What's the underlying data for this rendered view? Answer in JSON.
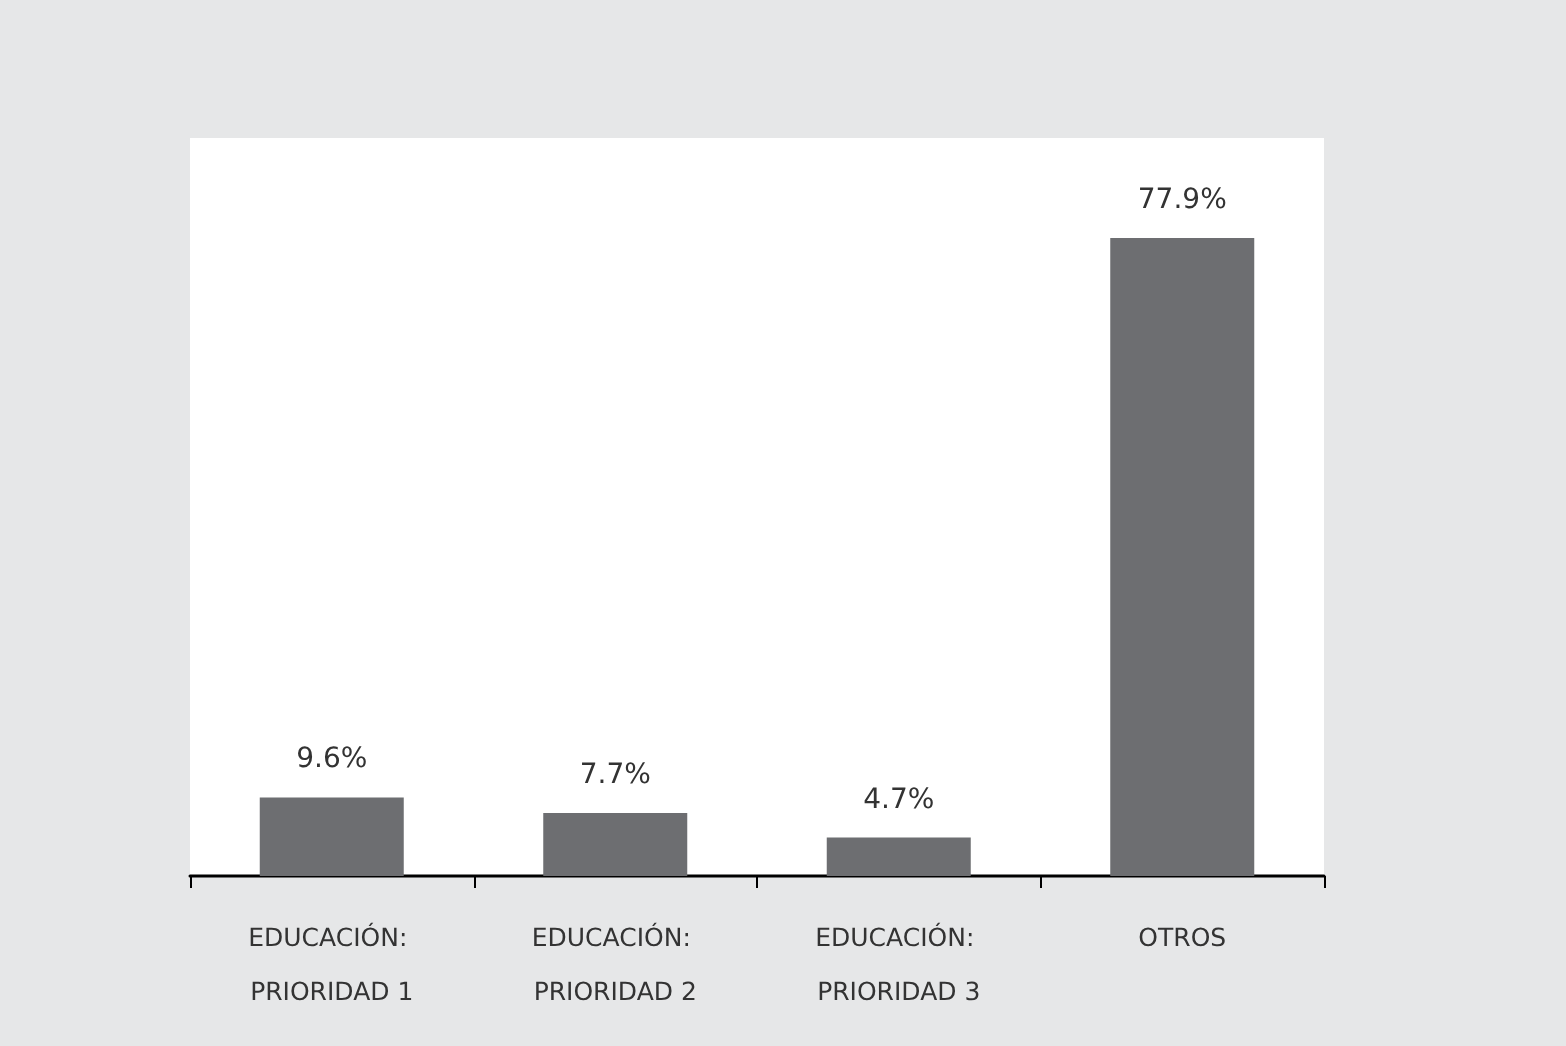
{
  "chart_data": {
    "type": "bar",
    "categories": [
      "EDUCACIÓN: PRIORIDAD 1",
      "EDUCACIÓN: PRIORIDAD 2",
      "EDUCACIÓN: PRIORIDAD 3",
      "OTROS"
    ],
    "values": [
      9.6,
      7.7,
      4.7,
      77.9
    ],
    "value_labels": [
      "9.6%",
      "7.7%",
      "4.7%",
      "77.9%"
    ],
    "color": "#6d6e71"
  }
}
